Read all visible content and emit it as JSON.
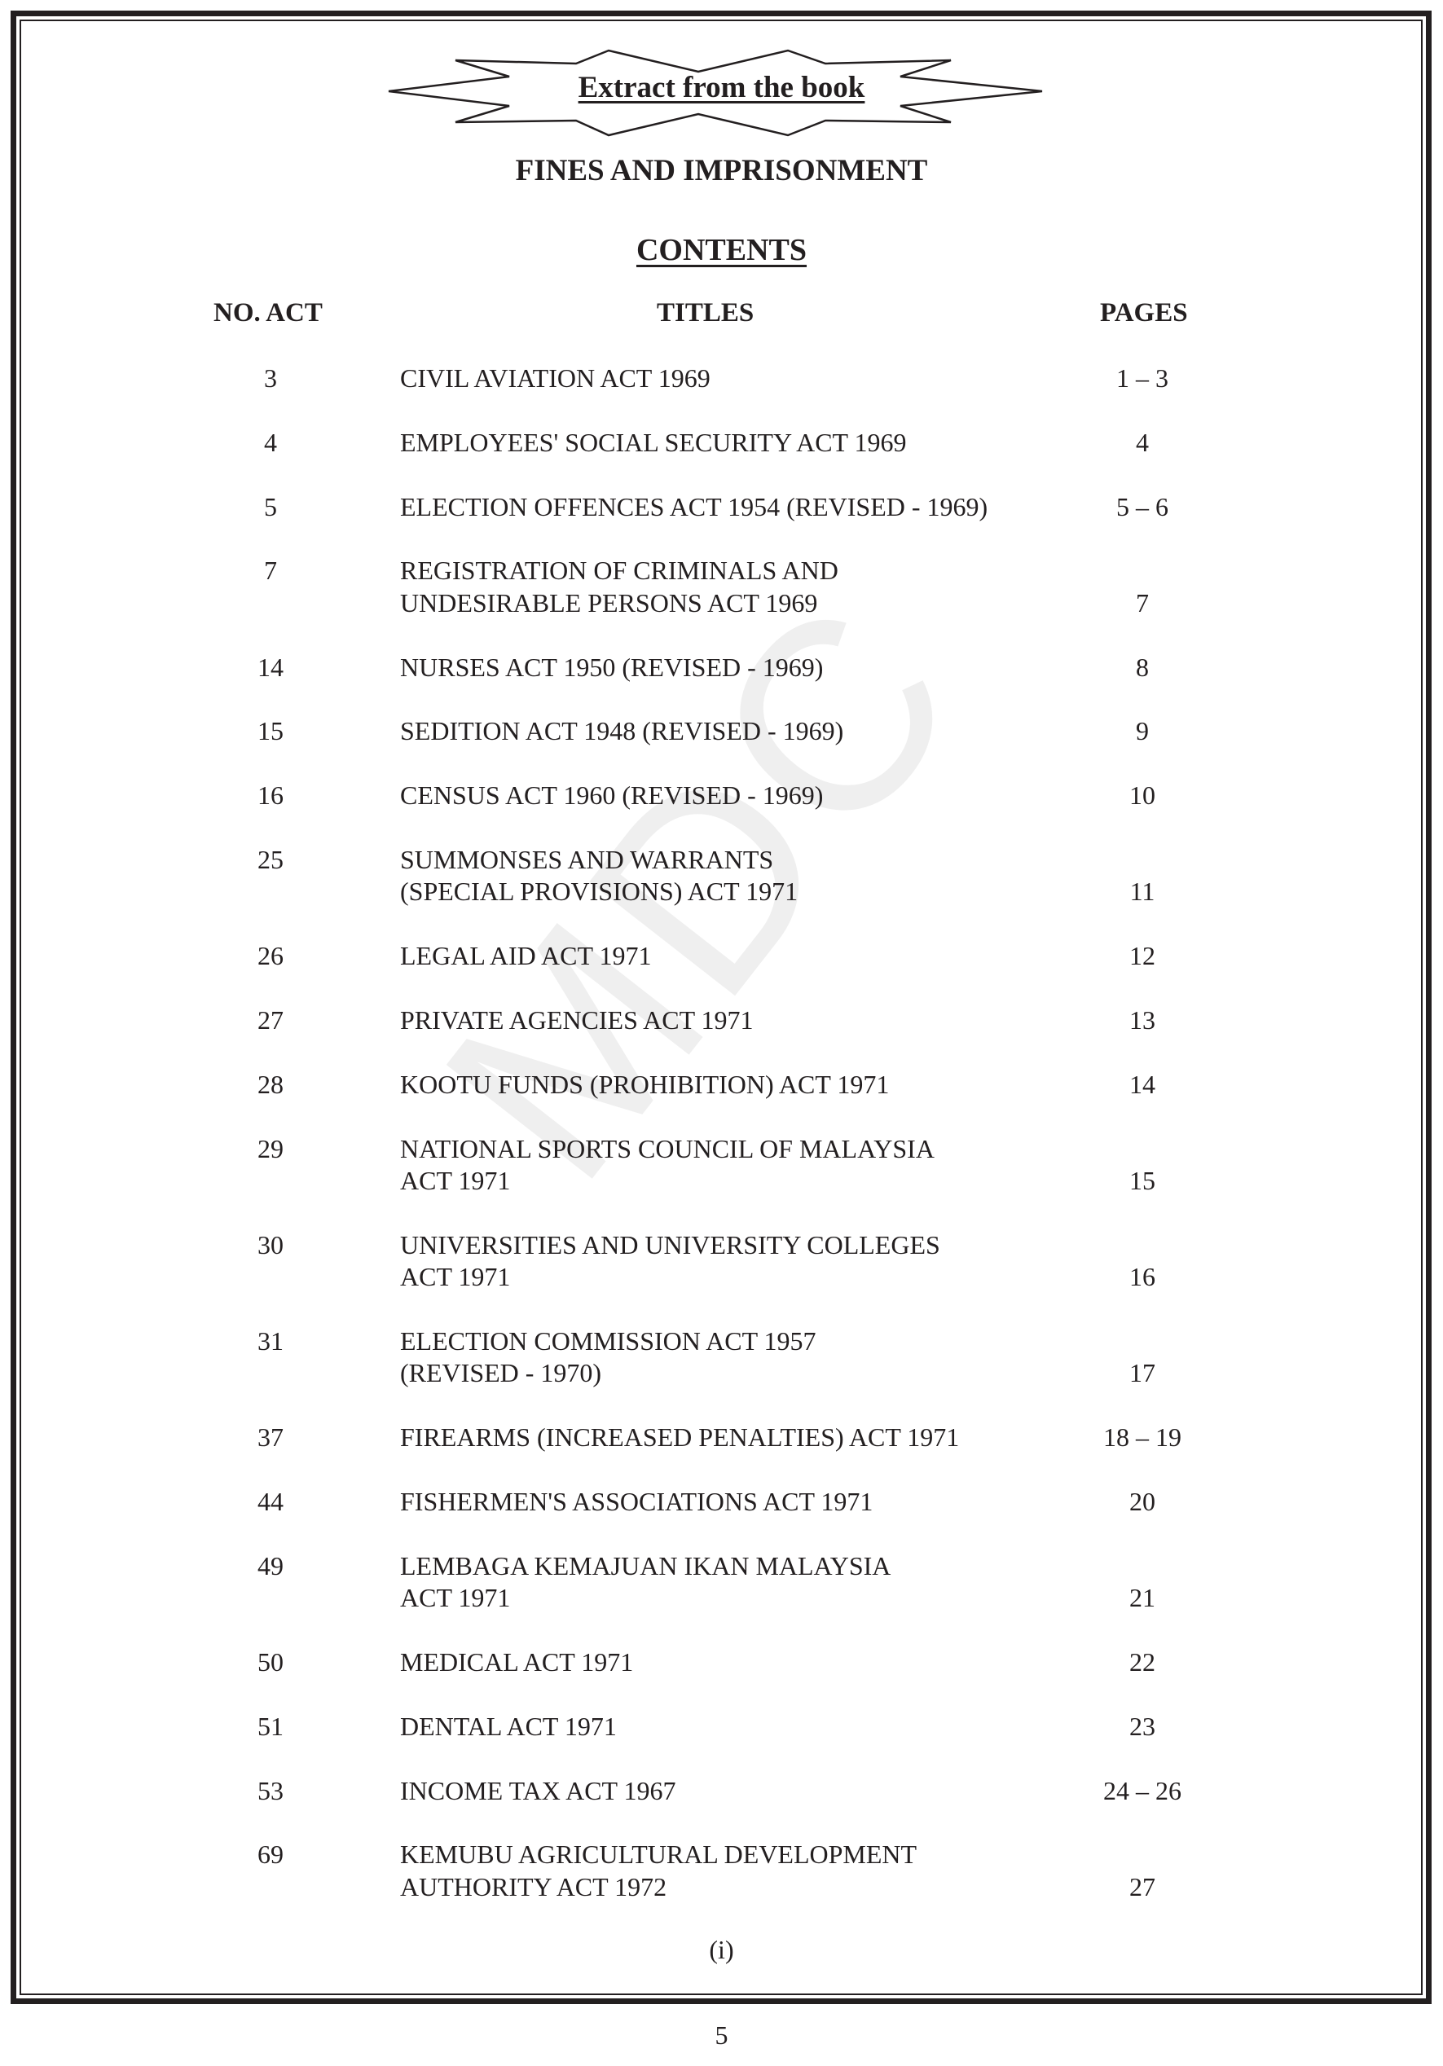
{
  "banner": {
    "text": "Extract from the book"
  },
  "book_title": "FINES AND IMPRISONMENT",
  "heading": "CONTENTS",
  "watermark": "MDC",
  "columns": {
    "no": "NO. ACT",
    "titles": "TITLES",
    "pages": "PAGES"
  },
  "rows": [
    {
      "no": "3",
      "lines": [
        "CIVIL AVIATION ACT 1969"
      ],
      "pages": "1 – 3"
    },
    {
      "no": "4",
      "lines": [
        "EMPLOYEES' SOCIAL SECURITY ACT 1969"
      ],
      "pages": "4"
    },
    {
      "no": "5",
      "lines": [
        "ELECTION OFFENCES ACT 1954 (REVISED - 1969)"
      ],
      "pages": "5 – 6"
    },
    {
      "no": "7",
      "lines": [
        "REGISTRATION OF CRIMINALS AND",
        "UNDESIRABLE PERSONS ACT 1969"
      ],
      "pages": "7"
    },
    {
      "no": "14",
      "lines": [
        "NURSES ACT 1950 (REVISED - 1969)"
      ],
      "pages": "8"
    },
    {
      "no": "15",
      "lines": [
        "SEDITION ACT 1948 (REVISED - 1969)"
      ],
      "pages": "9"
    },
    {
      "no": "16",
      "lines": [
        "CENSUS ACT 1960 (REVISED - 1969)"
      ],
      "pages": "10"
    },
    {
      "no": "25",
      "lines": [
        "SUMMONSES AND WARRANTS",
        "(SPECIAL PROVISIONS) ACT 1971"
      ],
      "pages": "11"
    },
    {
      "no": "26",
      "lines": [
        "LEGAL AID ACT 1971"
      ],
      "pages": "12"
    },
    {
      "no": "27",
      "lines": [
        "PRIVATE AGENCIES ACT 1971"
      ],
      "pages": "13"
    },
    {
      "no": "28",
      "lines": [
        "KOOTU FUNDS (PROHIBITION) ACT 1971"
      ],
      "pages": "14"
    },
    {
      "no": "29",
      "lines": [
        "NATIONAL SPORTS COUNCIL OF MALAYSIA",
        "ACT 1971"
      ],
      "pages": "15"
    },
    {
      "no": "30",
      "lines": [
        "UNIVERSITIES AND UNIVERSITY COLLEGES",
        "ACT 1971"
      ],
      "pages": "16"
    },
    {
      "no": "31",
      "lines": [
        "ELECTION COMMISSION ACT 1957",
        "(REVISED - 1970)"
      ],
      "pages": "17"
    },
    {
      "no": "37",
      "lines": [
        "FIREARMS (INCREASED PENALTIES) ACT 1971"
      ],
      "pages": "18 – 19"
    },
    {
      "no": "44",
      "lines": [
        "FISHERMEN'S ASSOCIATIONS ACT 1971"
      ],
      "pages": "20"
    },
    {
      "no": "49",
      "lines": [
        "LEMBAGA KEMAJUAN IKAN MALAYSIA",
        "ACT 1971"
      ],
      "pages": "21"
    },
    {
      "no": "50",
      "lines": [
        "MEDICAL ACT 1971"
      ],
      "pages": "22"
    },
    {
      "no": "51",
      "lines": [
        "DENTAL ACT 1971"
      ],
      "pages": "23"
    },
    {
      "no": "53",
      "lines": [
        "INCOME TAX ACT 1967"
      ],
      "pages": "24 – 26"
    },
    {
      "no": "69",
      "lines": [
        "KEMUBU AGRICULTURAL DEVELOPMENT",
        "AUTHORITY ACT 1972"
      ],
      "pages": "27"
    }
  ],
  "section_page": "(i)",
  "page_number": "5"
}
